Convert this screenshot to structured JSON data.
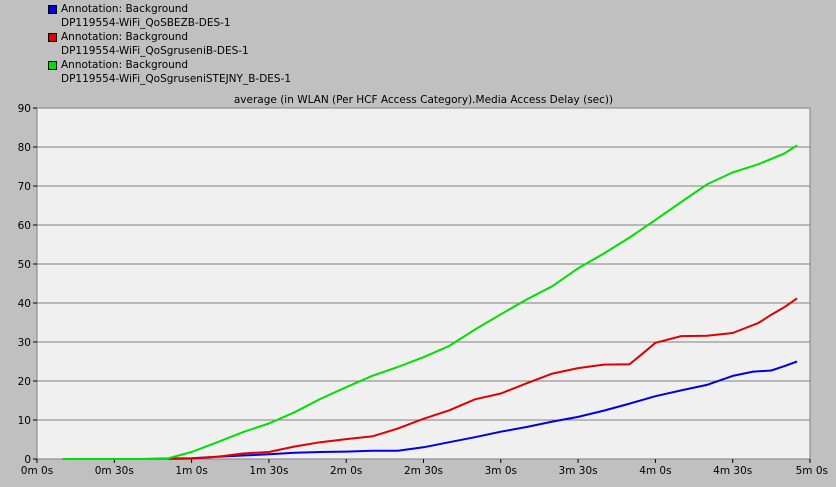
{
  "legend": [
    {
      "line1": "Annotation: Background",
      "line2": "DP119554-WiFi_QoSBEZB-DES-1",
      "color": "#0000e0"
    },
    {
      "line1": "Annotation: Background",
      "line2": "DP119554-WiFi_QoSgruseniB-DES-1",
      "color": "#e00000"
    },
    {
      "line1": "Annotation: Background",
      "line2": "DP119554-WiFi_QoSgruseniSTEJNY_B-DES-1",
      "color": "#00e000"
    }
  ],
  "chart_data": {
    "type": "line",
    "title": "average (in WLAN (Per HCF Access Category).Media Access Delay (sec))",
    "xlabel": "",
    "ylabel": "",
    "x_unit": "seconds",
    "xlim": [
      0,
      300
    ],
    "ylim": [
      0,
      90
    ],
    "x_ticks": [
      0,
      30,
      60,
      90,
      120,
      150,
      180,
      210,
      240,
      270,
      300
    ],
    "x_tick_labels": [
      "0m 0s",
      "0m 30s",
      "1m 0s",
      "1m 30s",
      "2m 0s",
      "2m 30s",
      "3m 0s",
      "3m 30s",
      "4m 0s",
      "4m 30s",
      "5m 0s"
    ],
    "y_ticks": [
      0,
      10,
      20,
      30,
      40,
      50,
      60,
      70,
      80,
      90
    ],
    "grid": true,
    "legend_position": "top-left",
    "series": [
      {
        "name": "DP119554-WiFi_QoSBEZB-DES-1",
        "color": "#0000e0",
        "x": [
          10,
          40,
          60,
          70,
          80,
          90,
          100,
          110,
          120,
          130,
          140,
          150,
          160,
          170,
          180,
          190,
          200,
          210,
          220,
          230,
          240,
          250,
          260,
          270,
          278,
          285,
          290,
          295
        ],
        "y": [
          0,
          0,
          0.2,
          0.6,
          0.9,
          1.2,
          1.6,
          1.8,
          1.9,
          2.1,
          2.1,
          3.0,
          4.3,
          5.6,
          7.0,
          8.2,
          9.6,
          10.8,
          12.4,
          14.2,
          16.1,
          17.6,
          19.0,
          21.3,
          22.4,
          22.7,
          23.8,
          25.0
        ]
      },
      {
        "name": "DP119554-WiFi_QoSgruseniB-DES-1",
        "color": "#e00000",
        "x": [
          10,
          50,
          60,
          70,
          80,
          90,
          100,
          110,
          120,
          130,
          140,
          150,
          160,
          170,
          180,
          190,
          200,
          210,
          220,
          230,
          235,
          240,
          250,
          260,
          270,
          280,
          285,
          290,
          295
        ],
        "y": [
          0,
          0,
          0.1,
          0.6,
          1.4,
          1.8,
          3.2,
          4.3,
          5.1,
          5.8,
          7.8,
          10.3,
          12.5,
          15.3,
          16.8,
          19.4,
          21.9,
          23.3,
          24.2,
          24.3,
          27.0,
          29.8,
          31.5,
          31.6,
          32.3,
          34.9,
          37.0,
          38.9,
          41.2
        ]
      },
      {
        "name": "DP119554-WiFi_QoSgruseniSTEJNY_B-DES-1",
        "color": "#00e000",
        "x": [
          10,
          50,
          60,
          70,
          80,
          90,
          100,
          110,
          120,
          130,
          140,
          150,
          160,
          170,
          180,
          190,
          200,
          210,
          220,
          230,
          240,
          250,
          260,
          270,
          280,
          290,
          295
        ],
        "y": [
          0,
          0,
          1.8,
          4.3,
          6.9,
          9.1,
          12.0,
          15.4,
          18.4,
          21.3,
          23.6,
          26.1,
          29.0,
          33.2,
          37.1,
          40.9,
          44.3,
          48.9,
          52.7,
          56.8,
          61.3,
          65.9,
          70.4,
          73.5,
          75.6,
          78.3,
          80.4
        ]
      }
    ]
  }
}
